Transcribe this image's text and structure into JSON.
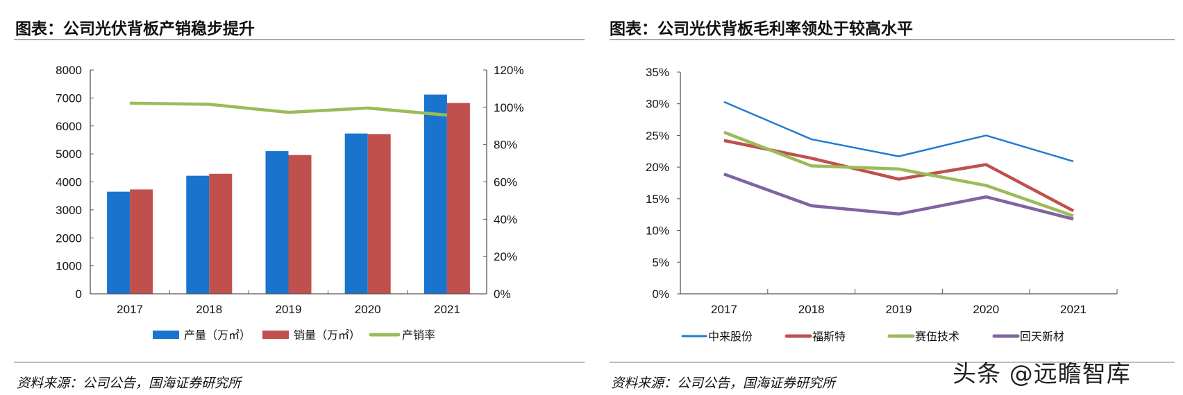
{
  "left_panel": {
    "title": "图表：公司光伏背板产销稳步提升",
    "source": "资料来源：公司公告，国海证券研究所"
  },
  "right_panel": {
    "title": "图表：公司光伏背板毛利率领处于较高水平",
    "source": "资料来源：公司公告，国海证券研究所"
  },
  "watermark": "头条 @远瞻智库",
  "chart_data": [
    {
      "type": "bar",
      "categories": [
        "2017",
        "2018",
        "2019",
        "2020",
        "2021"
      ],
      "series": [
        {
          "name": "产量（万㎡）",
          "kind": "bar",
          "axis": "left",
          "color": "#1874CD",
          "values": [
            3650,
            4220,
            5100,
            5730,
            7120
          ]
        },
        {
          "name": "销量（万㎡）",
          "kind": "bar",
          "axis": "left",
          "color": "#C0504D",
          "values": [
            3730,
            4290,
            4960,
            5710,
            6820
          ]
        },
        {
          "name": "产销率",
          "kind": "line",
          "axis": "right",
          "color": "#9BBB59",
          "values": [
            102.2,
            101.6,
            97.3,
            99.6,
            95.8
          ]
        }
      ],
      "ylim": [
        0,
        8000
      ],
      "yticks": [
        "0",
        "1000",
        "2000",
        "3000",
        "4000",
        "5000",
        "6000",
        "7000",
        "8000"
      ],
      "y2lim": [
        0,
        120
      ],
      "y2ticks": [
        "0%",
        "20%",
        "40%",
        "60%",
        "80%",
        "100%",
        "120%"
      ],
      "grid": false,
      "legend": "bottom"
    },
    {
      "type": "line",
      "categories": [
        "2017",
        "2018",
        "2019",
        "2020",
        "2021"
      ],
      "series": [
        {
          "name": "中来股份",
          "color": "#1F7BD1",
          "values": [
            30.3,
            24.4,
            21.7,
            25.0,
            20.9
          ]
        },
        {
          "name": "福斯特",
          "color": "#C0504D",
          "values": [
            24.2,
            21.4,
            18.1,
            20.4,
            13.1
          ]
        },
        {
          "name": "赛伍技术",
          "color": "#9BBB59",
          "values": [
            25.5,
            20.2,
            19.7,
            17.1,
            12.3
          ]
        },
        {
          "name": "回天新材",
          "color": "#8064A2",
          "values": [
            18.9,
            13.9,
            12.6,
            15.3,
            11.8
          ]
        }
      ],
      "ylim": [
        0,
        35
      ],
      "yticks": [
        "0%",
        "5%",
        "10%",
        "15%",
        "20%",
        "25%",
        "30%",
        "35%"
      ],
      "grid": false,
      "legend": "bottom"
    }
  ]
}
